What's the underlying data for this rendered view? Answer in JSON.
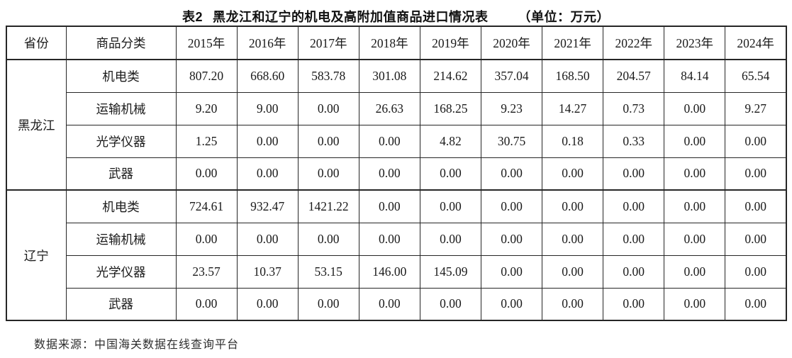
{
  "title": {
    "prefix": "表2",
    "text": "黑龙江和辽宁的机电及高附加值商品进口情况表",
    "unit": "（单位：万元）"
  },
  "table": {
    "headers": {
      "province": "省份",
      "category": "商品分类",
      "years": [
        "2015年",
        "2016年",
        "2017年",
        "2018年",
        "2019年",
        "2020年",
        "2021年",
        "2022年",
        "2023年",
        "2024年"
      ]
    },
    "groups": [
      {
        "province": "黑龙江",
        "rows": [
          {
            "category": "机电类",
            "values": [
              "807.20",
              "668.60",
              "583.78",
              "301.08",
              "214.62",
              "357.04",
              "168.50",
              "204.57",
              "84.14",
              "65.54"
            ]
          },
          {
            "category": "运输机械",
            "values": [
              "9.20",
              "9.00",
              "0.00",
              "26.63",
              "168.25",
              "9.23",
              "14.27",
              "0.73",
              "0.00",
              "9.27"
            ]
          },
          {
            "category": "光学仪器",
            "values": [
              "1.25",
              "0.00",
              "0.00",
              "0.00",
              "4.82",
              "30.75",
              "0.18",
              "0.33",
              "0.00",
              "0.00"
            ]
          },
          {
            "category": "武器",
            "values": [
              "0.00",
              "0.00",
              "0.00",
              "0.00",
              "0.00",
              "0.00",
              "0.00",
              "0.00",
              "0.00",
              "0.00"
            ]
          }
        ]
      },
      {
        "province": "辽宁",
        "rows": [
          {
            "category": "机电类",
            "values": [
              "724.61",
              "932.47",
              "1421.22",
              "0.00",
              "0.00",
              "0.00",
              "0.00",
              "0.00",
              "0.00",
              "0.00"
            ]
          },
          {
            "category": "运输机械",
            "values": [
              "0.00",
              "0.00",
              "0.00",
              "0.00",
              "0.00",
              "0.00",
              "0.00",
              "0.00",
              "0.00",
              "0.00"
            ]
          },
          {
            "category": "光学仪器",
            "values": [
              "23.57",
              "10.37",
              "53.15",
              "146.00",
              "145.09",
              "0.00",
              "0.00",
              "0.00",
              "0.00",
              "0.00"
            ]
          },
          {
            "category": "武器",
            "values": [
              "0.00",
              "0.00",
              "0.00",
              "0.00",
              "0.00",
              "0.00",
              "0.00",
              "0.00",
              "0.00",
              "0.00"
            ]
          }
        ]
      }
    ]
  },
  "footer": {
    "source": "数据来源：中国海关数据在线查询平台"
  }
}
